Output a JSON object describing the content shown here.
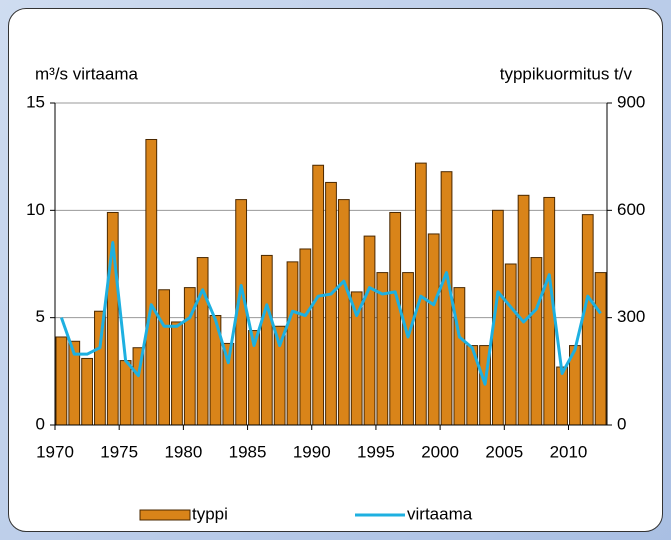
{
  "chart_data": {
    "type": "bar-line",
    "ylabel": "m³/s virtaama",
    "y2label": "typpikuormitus t/v",
    "x": [
      1970,
      1971,
      1972,
      1973,
      1974,
      1975,
      1976,
      1977,
      1978,
      1979,
      1980,
      1981,
      1982,
      1983,
      1984,
      1985,
      1986,
      1987,
      1988,
      1989,
      1990,
      1991,
      1992,
      1993,
      1994,
      1995,
      1996,
      1997,
      1998,
      1999,
      2000,
      2001,
      2002,
      2003,
      2004,
      2005,
      2006,
      2007,
      2008,
      2009,
      2010,
      2011,
      2012
    ],
    "xlim": [
      1970,
      2013
    ],
    "xticks": [
      1970,
      1975,
      1980,
      1985,
      1990,
      1995,
      2000,
      2005,
      2010
    ],
    "ylim": [
      0,
      15
    ],
    "yticks": [
      0,
      5,
      10,
      15
    ],
    "y2lim": [
      0,
      900
    ],
    "y2ticks": [
      0,
      300,
      600,
      900
    ],
    "grid": true,
    "series": [
      {
        "name": "typpi",
        "type": "bar",
        "axis": "y2",
        "color": "#d98419",
        "values": [
          246,
          234,
          186,
          318,
          594,
          180,
          216,
          798,
          378,
          288,
          384,
          468,
          306,
          228,
          630,
          264,
          474,
          276,
          456,
          492,
          726,
          678,
          630,
          372,
          528,
          426,
          594,
          426,
          732,
          534,
          708,
          384,
          222,
          222,
          600,
          450,
          642,
          468,
          636,
          162,
          222,
          588,
          426
        ]
      },
      {
        "name": "virtaama",
        "type": "line",
        "color": "#1eb0e0",
        "values": [
          5.0,
          3.3,
          3.3,
          3.6,
          8.5,
          3.0,
          2.3,
          5.6,
          4.6,
          4.6,
          5.0,
          6.3,
          4.9,
          2.9,
          6.5,
          3.7,
          5.6,
          3.7,
          5.3,
          5.1,
          6.0,
          6.1,
          6.7,
          5.1,
          6.4,
          6.1,
          6.2,
          4.1,
          6.0,
          5.6,
          7.1,
          4.1,
          3.6,
          1.9,
          6.2,
          5.5,
          4.8,
          5.4,
          7.0,
          2.4,
          3.5,
          6.0,
          5.2
        ]
      }
    ]
  }
}
